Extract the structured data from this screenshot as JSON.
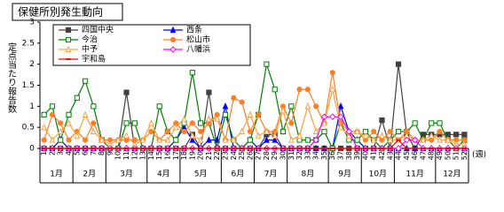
{
  "chart_data": {
    "type": "line",
    "title": "保健所別発生動向",
    "ylabel": "定点当たり報告数",
    "xlabel": "(週)",
    "categories": [
      "1",
      "2",
      "3",
      "4",
      "5",
      "6",
      "7",
      "8",
      "9",
      "10",
      "11",
      "12",
      "13",
      "14",
      "15",
      "16",
      "17",
      "18",
      "19",
      "20",
      "21",
      "22",
      "23",
      "24",
      "25",
      "26",
      "27",
      "28",
      "29",
      "30",
      "31",
      "32",
      "33",
      "34",
      "35",
      "36",
      "37",
      "38",
      "39",
      "40",
      "41",
      "42",
      "43",
      "44",
      "45",
      "46",
      "47",
      "48",
      "49",
      "50",
      "51",
      "52"
    ],
    "x_groups": [
      {
        "label": "1月",
        "weeks": 4
      },
      {
        "label": "2月",
        "weeks": 4
      },
      {
        "label": "3月",
        "weeks": 5
      },
      {
        "label": "4月",
        "weeks": 4
      },
      {
        "label": "5月",
        "weeks": 5
      },
      {
        "label": "6月",
        "weeks": 4
      },
      {
        "label": "7月",
        "weeks": 4
      },
      {
        "label": "8月",
        "weeks": 5
      },
      {
        "label": "9月",
        "weeks": 4
      },
      {
        "label": "10月",
        "weeks": 4
      },
      {
        "label": "11月",
        "weeks": 5
      },
      {
        "label": "12月",
        "weeks": 4
      }
    ],
    "ylim": [
      0,
      3
    ],
    "yticks": [
      0,
      0.5,
      1,
      1.5,
      2,
      2.5,
      3
    ],
    "grid": false,
    "legend": "upper left",
    "series": [
      {
        "name": "四国中央",
        "color": "#404040",
        "marker": "square",
        "values": [
          0,
          0,
          0,
          0,
          0,
          0,
          0,
          0,
          0,
          0,
          1.33,
          0,
          0,
          0,
          0,
          0,
          0,
          0,
          0.33,
          0,
          1.33,
          0,
          0,
          0,
          0,
          0,
          0,
          0.33,
          0.33,
          0,
          0,
          0,
          0,
          0,
          0,
          0,
          0,
          0,
          0,
          0,
          0,
          0.67,
          0,
          2.0,
          0.33,
          0,
          0.33,
          0.33,
          0.33,
          0.33,
          0.33,
          0.33
        ]
      },
      {
        "name": "西条",
        "color": "#0000ff",
        "marker": "triangle",
        "values": [
          0,
          0,
          0.2,
          0,
          0,
          0,
          0,
          0,
          0,
          0,
          0,
          0,
          0,
          0,
          0,
          0,
          0.2,
          0.5,
          0.2,
          0,
          0.2,
          0.2,
          1.0,
          0,
          0,
          0.2,
          0,
          0.2,
          0.2,
          0,
          0,
          0,
          0,
          0,
          0,
          0,
          1.0,
          0.4,
          0.2,
          0,
          0,
          0,
          0,
          0,
          0,
          0,
          0,
          0,
          0,
          0,
          0,
          0
        ]
      },
      {
        "name": "今治",
        "color": "#008000",
        "marker": "open-square",
        "values": [
          0.8,
          1.0,
          0.2,
          0.8,
          1.2,
          1.6,
          1.0,
          0.2,
          0,
          0,
          0.6,
          0.6,
          0,
          0,
          1.0,
          0.4,
          0.2,
          0.6,
          1.8,
          0.6,
          0.6,
          0,
          0.8,
          0.2,
          0,
          0.2,
          0.8,
          2.0,
          1.4,
          0.4,
          1.0,
          0.2,
          0.2,
          0.2,
          0.4,
          0,
          0.6,
          0.2,
          0.2,
          0.4,
          0.2,
          0,
          0.2,
          0.4,
          0.4,
          0.6,
          0.2,
          0.6,
          0.6,
          0.2,
          0,
          0.2
        ]
      },
      {
        "name": "松山市",
        "color": "#ff7f27",
        "marker": "circle",
        "values": [
          0.2,
          0.8,
          0.6,
          0.2,
          0.4,
          0.2,
          0.6,
          0.2,
          0.2,
          0.2,
          0.2,
          0.2,
          0.2,
          0.4,
          0.2,
          0.4,
          0.6,
          0.4,
          0.6,
          0.4,
          0.6,
          0.8,
          0.2,
          1.2,
          1.1,
          0.4,
          0.8,
          0.4,
          0.4,
          1.0,
          0.6,
          1.4,
          1.4,
          1.0,
          0.6,
          1.8,
          0.6,
          0.4,
          0.4,
          0.2,
          0.4,
          0.2,
          0.4,
          0.2,
          0.4,
          0.2,
          0.2,
          0.2,
          0.4,
          0.2,
          0.2,
          0.2
        ]
      },
      {
        "name": "中予",
        "color": "#ffa040",
        "marker": "open-triangle",
        "values": [
          0.5,
          0.2,
          0.4,
          0.6,
          0.3,
          0.8,
          0.4,
          0.2,
          0.1,
          0.2,
          0.3,
          0.1,
          0.2,
          0.6,
          0.2,
          0.2,
          0.5,
          0.7,
          0.3,
          0.2,
          0.7,
          0.7,
          0.2,
          0.2,
          0.4,
          0.8,
          0.3,
          0.4,
          0.3,
          0.9,
          0.2,
          0.3,
          1.0,
          0.4,
          0.6,
          1.4,
          0.5,
          0.3,
          0.4,
          0.3,
          0.2,
          0.3,
          0.2,
          0.2,
          0.3,
          0.2,
          0.2,
          0.3,
          0.2,
          0.2,
          0.1,
          0.1
        ]
      },
      {
        "name": "八幡浜",
        "color": "#ff00ff",
        "marker": "open-diamond",
        "values": [
          0,
          0,
          0,
          0,
          0,
          0,
          0,
          0,
          0,
          0,
          0,
          0,
          0,
          0,
          0,
          0,
          0,
          0,
          0,
          0,
          0,
          0,
          0,
          0,
          0,
          0,
          0,
          0,
          0,
          0,
          0,
          0,
          0,
          0.2,
          0.75,
          0.75,
          0.75,
          0.4,
          0,
          0,
          0,
          0,
          0,
          0,
          0.2,
          0.2,
          0,
          0,
          0,
          0,
          0,
          0
        ]
      },
      {
        "name": "宇和島",
        "color": "#ff0000",
        "marker": "dash",
        "values": [
          0,
          0,
          0,
          0,
          0,
          0,
          0,
          0,
          0,
          0,
          0,
          0,
          0,
          0,
          0,
          0,
          0,
          0,
          0,
          0,
          0,
          0,
          0,
          0,
          0,
          0,
          0,
          0,
          0,
          0,
          0,
          0,
          0,
          0,
          0,
          0,
          0,
          0,
          0,
          0,
          0,
          0,
          0,
          0.2,
          0,
          0,
          0,
          0,
          0,
          0,
          0,
          0
        ]
      }
    ]
  }
}
